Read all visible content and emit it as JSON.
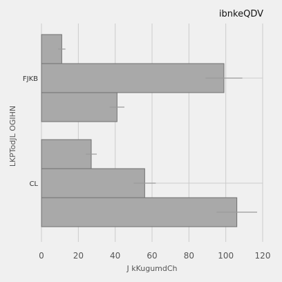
{
  "chart_data": {
    "type": "bar",
    "orientation": "horizontal",
    "title": "ibnkeQDV",
    "xlabel": "J kKugumdCh",
    "ylabel": "LKPTodJL OGIHN",
    "xlim": [
      0,
      120
    ],
    "xticks": [
      0,
      20,
      40,
      60,
      80,
      100,
      120
    ],
    "grid": true,
    "legend": "none",
    "bar_color": "#a9a9a9",
    "categories": [
      "FJKB",
      "CL"
    ],
    "series": [
      {
        "values": [
          11,
          27
        ],
        "errors": [
          2,
          3
        ]
      },
      {
        "values": [
          99,
          56
        ],
        "errors": [
          10,
          6
        ]
      },
      {
        "values": [
          41,
          106
        ],
        "errors": [
          4,
          11
        ]
      }
    ]
  }
}
